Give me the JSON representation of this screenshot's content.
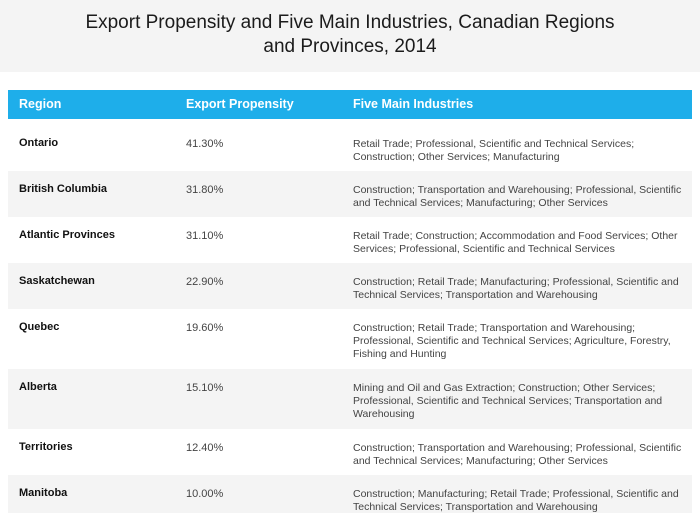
{
  "title_line1": "Export Propensity and Five Main Industries, Canadian Regions",
  "title_line2": "and Provinces, 2014",
  "columns": [
    "Region",
    "Export Propensity",
    "Five Main Industries"
  ],
  "rows": [
    {
      "region": "Ontario",
      "propensity": "41.30%",
      "industries": "Retail Trade; Professional, Scientific and Technical Services; Construction; Other Services; Manufacturing"
    },
    {
      "region": "British Columbia",
      "propensity": "31.80%",
      "industries": "Construction; Transportation and Warehousing; Professional, Scientific and Technical Services; Manufacturing; Other Services"
    },
    {
      "region": "Atlantic Provinces",
      "propensity": "31.10%",
      "industries": "Retail Trade; Construction; Accommodation and Food Services; Other Services; Professional, Scientific and Technical Services"
    },
    {
      "region": "Saskatchewan",
      "propensity": "22.90%",
      "industries": "Construction; Retail Trade; Manufacturing; Professional, Scientific and Technical Services; Transportation and Warehousing"
    },
    {
      "region": "Quebec",
      "propensity": "19.60%",
      "industries": "Construction; Retail Trade; Transportation and Warehousing; Professional, Scientific and Technical Services; Agriculture, Forestry, Fishing and Hunting"
    },
    {
      "region": "Alberta",
      "propensity": "15.10%",
      "industries": "Mining and Oil and Gas Extraction; Construction; Other Services; Professional, Scientific and Technical Services; Transportation and Warehousing"
    },
    {
      "region": "Territories",
      "propensity": "12.40%",
      "industries": "Construction; Transportation and Warehousing; Professional, Scientific and Technical Services; Manufacturing; Other Services"
    },
    {
      "region": "Manitoba",
      "propensity": "10.00%",
      "industries": "Construction; Manufacturing; Retail Trade; Professional, Scientific and Technical Services; Transportation and Warehousing"
    }
  ],
  "colors": {
    "header_bg": "#1eaeea",
    "title_bg": "#f4f4f4",
    "alt_row_bg": "#f4f4f4"
  }
}
